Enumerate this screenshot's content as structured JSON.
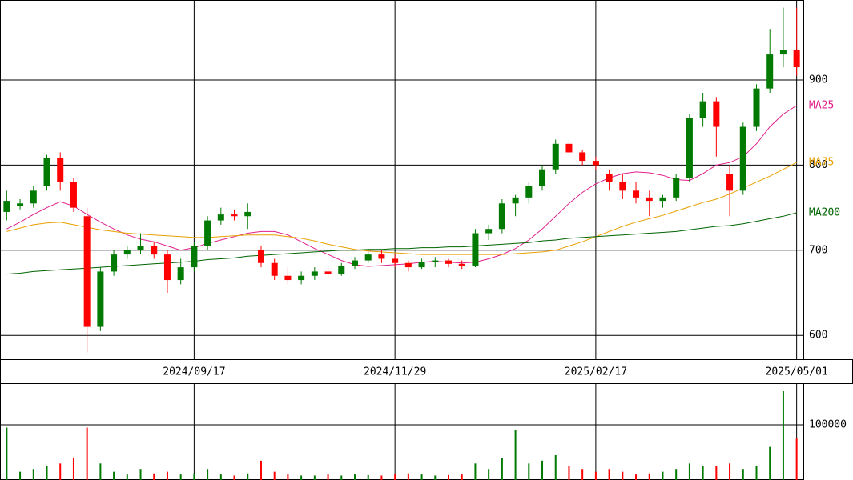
{
  "chart_data": {
    "type": "candlestick",
    "categories": [
      null,
      null,
      null,
      null,
      null,
      null,
      null,
      null,
      null,
      null,
      null,
      null,
      null,
      null,
      "2024/09/17",
      null,
      null,
      null,
      null,
      null,
      null,
      null,
      null,
      null,
      null,
      null,
      null,
      null,
      null,
      "2024/11/29",
      null,
      null,
      null,
      null,
      null,
      null,
      null,
      null,
      null,
      null,
      null,
      null,
      null,
      null,
      "2025/02/17",
      null,
      null,
      null,
      null,
      null,
      null,
      null,
      null,
      null,
      null,
      null,
      null,
      null,
      null,
      "2025/05/01"
    ],
    "candles": [
      [
        745,
        770,
        735,
        758
      ],
      [
        752,
        760,
        748,
        755
      ],
      [
        755,
        775,
        750,
        770
      ],
      [
        775,
        812,
        770,
        808
      ],
      [
        808,
        815,
        770,
        780
      ],
      [
        780,
        785,
        745,
        750
      ],
      [
        740,
        750,
        580,
        610
      ],
      [
        610,
        680,
        605,
        675
      ],
      [
        675,
        700,
        670,
        695
      ],
      [
        695,
        705,
        690,
        700
      ],
      [
        700,
        720,
        695,
        705
      ],
      [
        705,
        710,
        690,
        695
      ],
      [
        695,
        700,
        650,
        665
      ],
      [
        665,
        690,
        660,
        680
      ],
      [
        680,
        710,
        675,
        705
      ],
      [
        705,
        740,
        700,
        735
      ],
      [
        735,
        750,
        730,
        742
      ],
      [
        742,
        748,
        735,
        740
      ],
      [
        740,
        755,
        725,
        745
      ],
      [
        700,
        705,
        680,
        685
      ],
      [
        685,
        690,
        665,
        670
      ],
      [
        670,
        680,
        660,
        665
      ],
      [
        665,
        675,
        660,
        670
      ],
      [
        670,
        680,
        665,
        675
      ],
      [
        675,
        682,
        668,
        672
      ],
      [
        672,
        685,
        670,
        682
      ],
      [
        682,
        692,
        678,
        688
      ],
      [
        688,
        698,
        685,
        695
      ],
      [
        695,
        700,
        685,
        690
      ],
      [
        690,
        695,
        680,
        685
      ],
      [
        685,
        688,
        675,
        680
      ],
      [
        680,
        690,
        678,
        686
      ],
      [
        686,
        692,
        680,
        688
      ],
      [
        688,
        690,
        680,
        684
      ],
      [
        684,
        688,
        678,
        682
      ],
      [
        682,
        725,
        680,
        720
      ],
      [
        720,
        730,
        712,
        725
      ],
      [
        725,
        760,
        720,
        755
      ],
      [
        755,
        765,
        740,
        762
      ],
      [
        762,
        780,
        755,
        775
      ],
      [
        775,
        800,
        770,
        795
      ],
      [
        795,
        830,
        790,
        825
      ],
      [
        825,
        830,
        810,
        815
      ],
      [
        815,
        818,
        800,
        805
      ],
      [
        805,
        810,
        795,
        800
      ],
      [
        790,
        795,
        770,
        780
      ],
      [
        780,
        790,
        760,
        770
      ],
      [
        770,
        780,
        755,
        762
      ],
      [
        762,
        770,
        740,
        758
      ],
      [
        758,
        765,
        750,
        762
      ],
      [
        762,
        790,
        758,
        785
      ],
      [
        785,
        860,
        780,
        855
      ],
      [
        855,
        885,
        845,
        875
      ],
      [
        875,
        880,
        810,
        845
      ],
      [
        790,
        800,
        740,
        770
      ],
      [
        770,
        850,
        765,
        845
      ],
      [
        845,
        895,
        840,
        890
      ],
      [
        890,
        960,
        885,
        930
      ],
      [
        930,
        985,
        915,
        935
      ],
      [
        935,
        985,
        905,
        915
      ]
    ],
    "up_color": "#007a00",
    "down_color": "#ff0000",
    "ylim": [
      572,
      994
    ],
    "yticks": [
      600,
      700,
      800,
      900
    ],
    "grid": true,
    "series": [
      {
        "name": "MA25",
        "color": "#e0208c",
        "values": [
          725,
          733,
          742,
          750,
          757,
          752,
          742,
          733,
          725,
          718,
          713,
          710,
          705,
          700,
          703,
          708,
          712,
          716,
          720,
          722,
          722,
          718,
          710,
          702,
          695,
          688,
          683,
          681,
          682,
          683,
          684,
          686,
          687,
          686,
          685,
          686,
          690,
          695,
          702,
          712,
          725,
          740,
          755,
          768,
          778,
          785,
          790,
          792,
          791,
          788,
          783,
          782,
          790,
          800,
          803,
          810,
          825,
          845,
          860,
          870
        ]
      },
      {
        "name": "MA75",
        "color": "#e8a000",
        "values": [
          722,
          726,
          730,
          732,
          733,
          730,
          727,
          724,
          722,
          720,
          719,
          718,
          717,
          716,
          715,
          715,
          716,
          717,
          718,
          718,
          718,
          716,
          714,
          711,
          707,
          704,
          701,
          699,
          698,
          697,
          696,
          695,
          695,
          695,
          695,
          695,
          695,
          695,
          696,
          697,
          698,
          700,
          705,
          710,
          716,
          722,
          728,
          733,
          737,
          741,
          746,
          751,
          756,
          760,
          766,
          773,
          780,
          787,
          795,
          803
        ]
      },
      {
        "name": "MA200",
        "color": "#006400",
        "values": [
          672,
          673,
          675,
          676,
          677,
          678,
          679,
          680,
          681,
          682,
          683,
          684,
          685,
          686,
          687,
          689,
          690,
          691,
          693,
          694,
          695,
          696,
          697,
          698,
          699,
          700,
          700,
          701,
          701,
          702,
          702,
          703,
          703,
          704,
          704,
          705,
          706,
          707,
          708,
          709,
          711,
          712,
          714,
          715,
          716,
          717,
          718,
          719,
          720,
          721,
          722,
          724,
          726,
          728,
          729,
          731,
          734,
          737,
          740,
          744
        ]
      }
    ],
    "volume": {
      "values": [
        95000,
        15000,
        20000,
        25000,
        30000,
        40000,
        95000,
        30000,
        15000,
        10000,
        20000,
        12000,
        15000,
        10000,
        12000,
        20000,
        10000,
        8000,
        12000,
        35000,
        15000,
        10000,
        8000,
        8000,
        10000,
        8000,
        10000,
        9000,
        8000,
        10000,
        12000,
        10000,
        8000,
        9000,
        10000,
        30000,
        20000,
        40000,
        90000,
        30000,
        35000,
        45000,
        25000,
        20000,
        15000,
        20000,
        15000,
        10000,
        12000,
        15000,
        20000,
        30000,
        25000,
        25000,
        30000,
        20000,
        25000,
        60000,
        161000,
        75000
      ],
      "ylim": [
        0,
        174000
      ],
      "yticks": [
        100000
      ]
    }
  }
}
